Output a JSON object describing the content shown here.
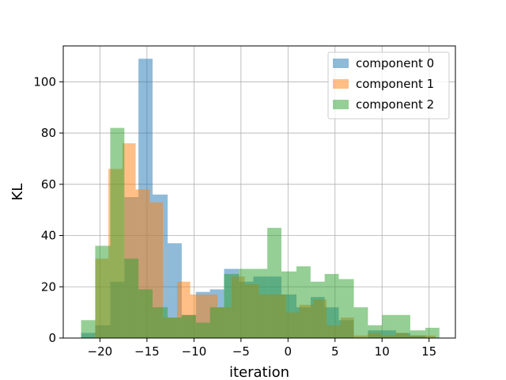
{
  "chart_data": {
    "type": "bar",
    "subtype": "overlapping-histogram",
    "xlabel": "iteration",
    "ylabel": "KL",
    "xlim": [
      -23.9,
      17.8
    ],
    "ylim": [
      0,
      114
    ],
    "xticks": [
      -20,
      -15,
      -10,
      -5,
      0,
      5,
      10,
      15
    ],
    "yticks": [
      0,
      20,
      40,
      60,
      80,
      100
    ],
    "grid": true,
    "legend_position": "top-right",
    "series": [
      {
        "name": "component 0",
        "color": "#1f77b4",
        "opacity": 0.5,
        "bins": [
          [
            -22.0,
            -20.5,
            2
          ],
          [
            -20.5,
            -18.9,
            5
          ],
          [
            -18.9,
            -17.4,
            22
          ],
          [
            -17.4,
            -15.9,
            55
          ],
          [
            -15.9,
            -14.4,
            109
          ],
          [
            -14.4,
            -12.8,
            56
          ],
          [
            -12.8,
            -11.3,
            37
          ],
          [
            -11.3,
            -9.8,
            9
          ],
          [
            -9.8,
            -8.3,
            18
          ],
          [
            -8.3,
            -6.8,
            19
          ],
          [
            -6.8,
            -5.2,
            27
          ],
          [
            -5.2,
            -3.7,
            22
          ],
          [
            -3.7,
            -2.2,
            24
          ],
          [
            -2.2,
            -0.7,
            24
          ],
          [
            -0.7,
            0.9,
            17
          ],
          [
            0.9,
            2.4,
            12
          ],
          [
            2.4,
            3.9,
            16
          ],
          [
            3.9,
            5.4,
            12
          ],
          [
            5.4,
            7.0,
            7
          ],
          [
            7.0,
            8.5,
            0
          ],
          [
            8.5,
            10.0,
            3
          ],
          [
            10.0,
            11.5,
            3
          ],
          [
            11.5,
            13.0,
            2
          ],
          [
            13.0,
            14.6,
            1
          ]
        ]
      },
      {
        "name": "component 1",
        "color": "#ff7f0e",
        "opacity": 0.5,
        "bins": [
          [
            -20.5,
            -19.1,
            31
          ],
          [
            -19.1,
            -17.6,
            66
          ],
          [
            -17.6,
            -16.2,
            76
          ],
          [
            -16.2,
            -14.7,
            58
          ],
          [
            -14.7,
            -13.3,
            53
          ],
          [
            -13.3,
            -11.8,
            8
          ],
          [
            -11.8,
            -10.4,
            22
          ],
          [
            -10.4,
            -8.9,
            17
          ],
          [
            -8.9,
            -7.5,
            17
          ],
          [
            -7.5,
            -6.0,
            12
          ],
          [
            -6.0,
            -4.6,
            24
          ],
          [
            -4.6,
            -3.1,
            21
          ],
          [
            -3.1,
            -1.7,
            17
          ],
          [
            -1.7,
            -0.2,
            17
          ],
          [
            -0.2,
            1.2,
            10
          ],
          [
            1.2,
            2.7,
            13
          ],
          [
            2.7,
            4.1,
            15
          ],
          [
            4.1,
            5.6,
            5
          ],
          [
            5.6,
            7.0,
            8
          ],
          [
            7.0,
            8.5,
            1
          ],
          [
            8.5,
            9.9,
            2
          ],
          [
            9.9,
            11.4,
            1
          ],
          [
            11.4,
            12.8,
            2
          ],
          [
            12.8,
            14.3,
            1
          ],
          [
            14.3,
            15.7,
            1
          ]
        ]
      },
      {
        "name": "component 2",
        "color": "#2ca02c",
        "opacity": 0.5,
        "bins": [
          [
            -22.0,
            -20.5,
            7
          ],
          [
            -20.5,
            -18.9,
            36
          ],
          [
            -18.9,
            -17.4,
            82
          ],
          [
            -17.4,
            -15.9,
            31
          ],
          [
            -15.9,
            -14.4,
            19
          ],
          [
            -14.4,
            -12.8,
            12
          ],
          [
            -12.8,
            -11.3,
            8
          ],
          [
            -11.3,
            -9.8,
            9
          ],
          [
            -9.8,
            -8.3,
            6
          ],
          [
            -8.3,
            -6.8,
            12
          ],
          [
            -6.8,
            -5.2,
            25
          ],
          [
            -5.2,
            -3.7,
            27
          ],
          [
            -3.7,
            -2.2,
            27
          ],
          [
            -2.2,
            -0.7,
            43
          ],
          [
            -0.7,
            0.9,
            26
          ],
          [
            0.9,
            2.4,
            28
          ],
          [
            2.4,
            3.9,
            22
          ],
          [
            3.9,
            5.4,
            25
          ],
          [
            5.4,
            7.0,
            23
          ],
          [
            7.0,
            8.5,
            12
          ],
          [
            8.5,
            10.0,
            5
          ],
          [
            10.0,
            11.5,
            9
          ],
          [
            11.5,
            13.0,
            9
          ],
          [
            13.0,
            14.6,
            3
          ],
          [
            14.6,
            16.1,
            4
          ]
        ]
      }
    ]
  }
}
